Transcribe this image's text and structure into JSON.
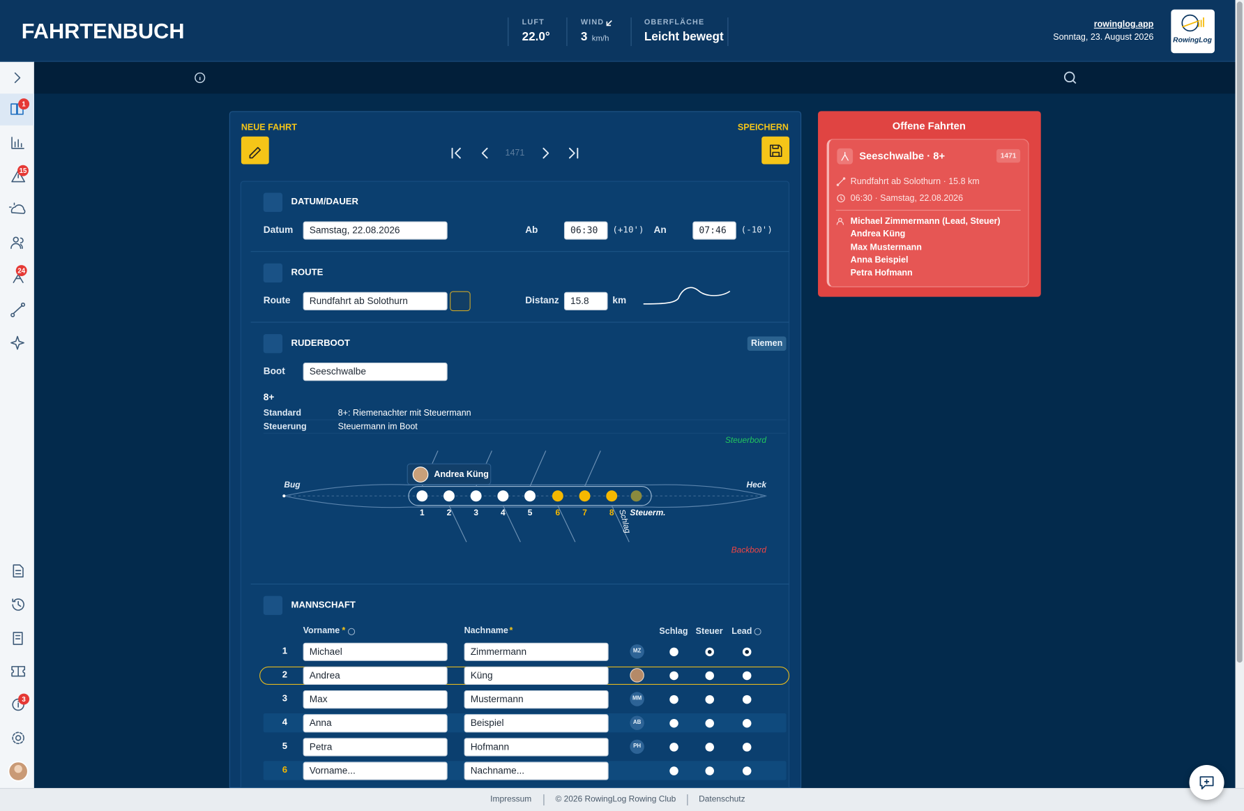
{
  "header": {
    "title": "FAHRTENBUCH",
    "weather": [
      {
        "label": "LUFT",
        "value": "22.0°"
      },
      {
        "label": "WIND",
        "value": "3",
        "unit": "km/h"
      },
      {
        "label": "OBERFLÄCHE",
        "value": "Leicht bewegt"
      }
    ],
    "site": "rowinglog.app",
    "date": "Sonntag, 23. August 2026",
    "logo": "RowingLog"
  },
  "sidebar": {
    "badges": [
      "1",
      "15",
      "24",
      "3"
    ]
  },
  "form": {
    "new_label": "NEUE FAHRT",
    "save_label": "SPEICHERN",
    "trip_number": "1471",
    "date_section": {
      "title": "DATUM/DAUER",
      "date_label": "Datum",
      "date": "Samstag, 22.08.2026",
      "from_label": "Ab",
      "from": "06:30",
      "from_delta": "(+10')",
      "to_label": "An",
      "to": "07:46",
      "to_delta": "(-10')"
    },
    "route_section": {
      "title": "ROUTE",
      "route_label": "Route",
      "route": "Rundfahrt ab Solothurn",
      "distance_label": "Distanz",
      "distance": "15.8",
      "unit": "km"
    },
    "boat_section": {
      "title": "RUDERBOOT",
      "tag": "Riemen",
      "boat_label": "Boot",
      "boat": "Seeschwalbe",
      "class": "8+",
      "details": [
        {
          "label": "Standard",
          "value": "8+: Riemenachter mit Steuermann"
        },
        {
          "label": "Steuerung",
          "value": "Steuermann im Boot"
        }
      ],
      "diagram": {
        "starboard": "Steuerbord",
        "port": "Backbord",
        "bow": "Bug",
        "stern": "Heck",
        "seats": [
          {
            "label": "1",
            "filled": true
          },
          {
            "label": "2",
            "filled": true
          },
          {
            "label": "3",
            "filled": true
          },
          {
            "label": "4",
            "filled": true
          },
          {
            "label": "5",
            "filled": true
          },
          {
            "label": "6",
            "filled": false
          },
          {
            "label": "7",
            "filled": false
          },
          {
            "label": "8",
            "filled": false
          }
        ],
        "cox": "Steuerm.",
        "stroke": "Schlag",
        "tooltip": "Andrea Küng"
      }
    },
    "crew_section": {
      "title": "MANNSCHAFT",
      "first_header": "Vorname",
      "last_header": "Nachname",
      "required": "*",
      "stroke_header": "Schlag",
      "cox_header": "Steuer",
      "lead_header": "Lead",
      "rows": [
        {
          "no": "1",
          "first": "Michael",
          "last": "Zimmermann",
          "initials": "MZ",
          "schlag": false,
          "steuer": true,
          "lead": true
        },
        {
          "no": "2",
          "first": "Andrea",
          "last": "Küng",
          "photo": true,
          "highlighted": true,
          "schlag": false,
          "steuer": false,
          "lead": false
        },
        {
          "no": "3",
          "first": "Max",
          "last": "Mustermann",
          "initials": "MM",
          "schlag": false,
          "steuer": false,
          "lead": false
        },
        {
          "no": "4",
          "first": "Anna",
          "last": "Beispiel",
          "initials": "AB",
          "schlag": false,
          "steuer": false,
          "lead": false
        },
        {
          "no": "5",
          "first": "Petra",
          "last": "Hofmann",
          "initials": "PH",
          "schlag": false,
          "steuer": false,
          "lead": false
        },
        {
          "no": "6",
          "first": "Vorname...",
          "last": "Nachname...",
          "empty": true,
          "schlag": false,
          "steuer": false,
          "lead": false
        }
      ]
    }
  },
  "open_trips": {
    "title": "Offene Fahrten",
    "trips": [
      {
        "boat": "Seeschwalbe · 8+",
        "number": "1471",
        "route": "Rundfahrt ab Solothurn · 15.8 km",
        "time": "06:30 · Samstag, 22.08.2026",
        "crew": [
          "Michael Zimmermann (Lead, Steuer)",
          "Andrea Küng",
          "Max Mustermann",
          "Anna Beispiel",
          "Petra Hofmann"
        ]
      }
    ]
  },
  "footer": {
    "links": [
      "Impressum",
      "© 2026 RowingLog Rowing Club",
      "Datenschutz"
    ]
  }
}
